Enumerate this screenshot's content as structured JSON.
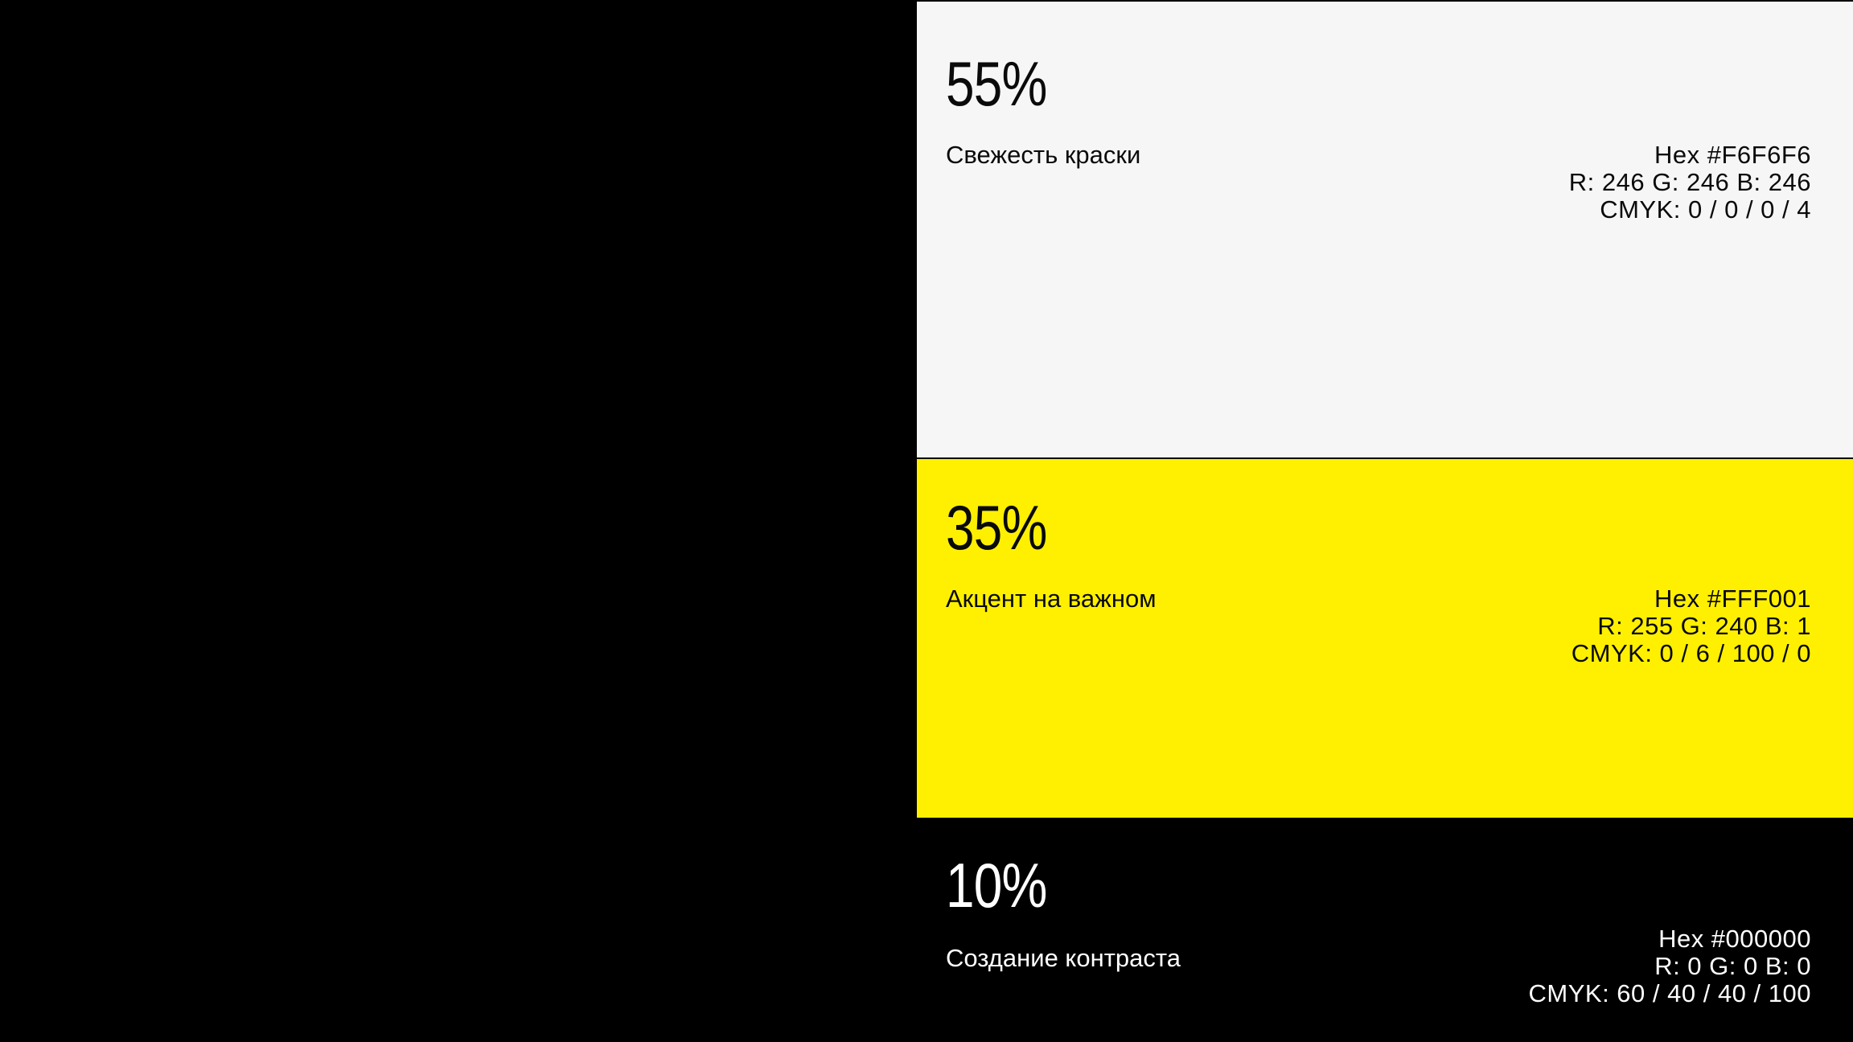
{
  "page": {
    "background": "#000000"
  },
  "palette": {
    "swatches": [
      {
        "share": "55%",
        "name": "Свежесть краски",
        "hex_label": "Hex #F6F6F6",
        "rgb_label": "R: 246 G: 246 B: 246",
        "cmyk_label": "CMYK: 0 / 0 / 0 / 4",
        "color": "#F6F6F6",
        "text_color": "#0A0A0A"
      },
      {
        "share": "35%",
        "name": "Акцент на важном",
        "hex_label": "Hex #FFF001",
        "rgb_label": "R: 255 G: 240 B: 1",
        "cmyk_label": "CMYK: 0 / 6 / 100 / 0",
        "color": "#FFF001",
        "text_color": "#0A0A0A"
      },
      {
        "share": "10%",
        "name": "Создание контраста",
        "hex_label": "Hex #000000",
        "rgb_label": "R: 0 G: 0 B: 0",
        "cmyk_label": "CMYK: 60 / 40 / 40 / 100",
        "color": "#000000",
        "text_color": "#FFFFFF"
      }
    ]
  }
}
